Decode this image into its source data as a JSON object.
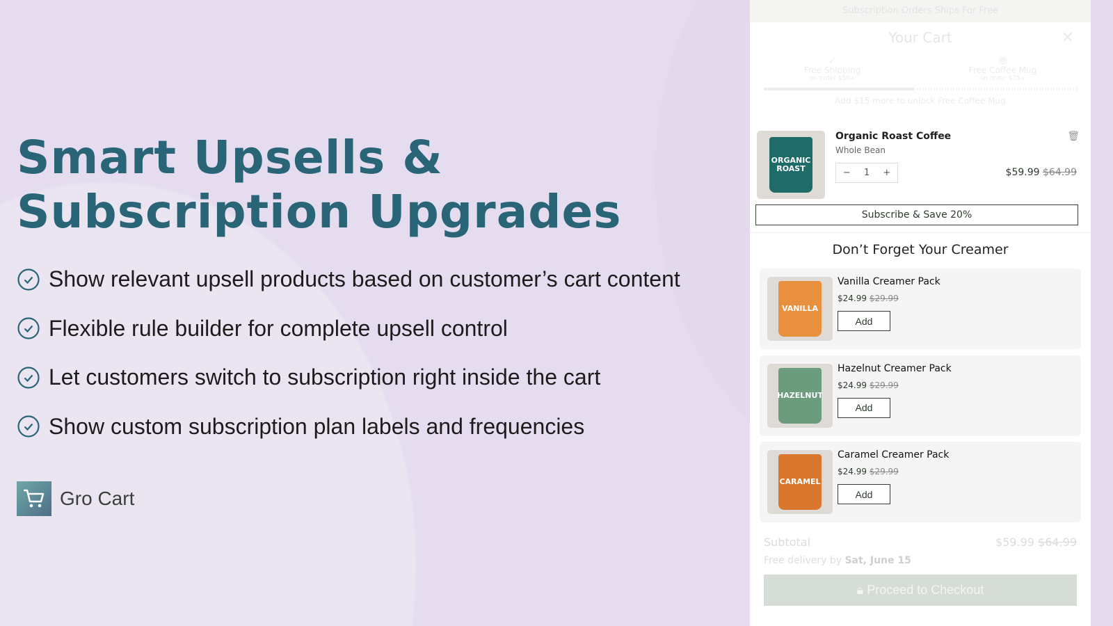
{
  "hero": {
    "title_line1": "Smart Upsells &",
    "title_line2": "Subscription Upgrades",
    "features": [
      "Show relevant upsell products based on customer’s cart content",
      "Flexible rule builder for complete upsell control",
      "Let customers switch to subscription right inside the cart",
      "Show custom subscription plan labels and frequencies"
    ],
    "brand": "Gro Cart",
    "accent": "#2a6577"
  },
  "cart": {
    "announcement": "Subscription Orders Ships For Free",
    "title": "Your Cart",
    "milestones": [
      {
        "label": "Free Shipping",
        "sub": "on order $50+",
        "icon": "check-icon"
      },
      {
        "label": "Free Coffee Mug",
        "sub": "on order $75+",
        "icon": "gift-icon"
      }
    ],
    "progress_percent": 48,
    "hint": "Add $15 more to unlock Free Coffee Mug",
    "item": {
      "name": "Organic Roast Coffee",
      "variant": "Whole Bean",
      "qty": "1",
      "price": "$59.99",
      "compare": "$64.99",
      "bag_text": "ORGANIC ROAST"
    },
    "subscribe_label": "Subscribe & Save 20%",
    "upsell_heading": "Don’t Forget Your Creamer",
    "upsells": [
      {
        "name": "Vanilla Creamer Pack",
        "price": "$24.99",
        "compare": "$29.99",
        "bag_text": "VANILLA",
        "color": "#e8903e",
        "add": "Add"
      },
      {
        "name": "Hazelnut Creamer Pack",
        "price": "$24.99",
        "compare": "$29.99",
        "bag_text": "HAZELNUT",
        "color": "#6b9c7e",
        "add": "Add"
      },
      {
        "name": "Caramel Creamer Pack",
        "price": "$24.99",
        "compare": "$29.99",
        "bag_text": "CARAMEL",
        "color": "#d9772e",
        "add": "Add"
      }
    ],
    "subtotal_label": "Subtotal",
    "subtotal": "$59.99",
    "subtotal_compare": "$64.99",
    "delivery_prefix": "Free delivery by",
    "delivery_date": "Sat, June 15",
    "checkout": "Proceed to Checkout"
  }
}
